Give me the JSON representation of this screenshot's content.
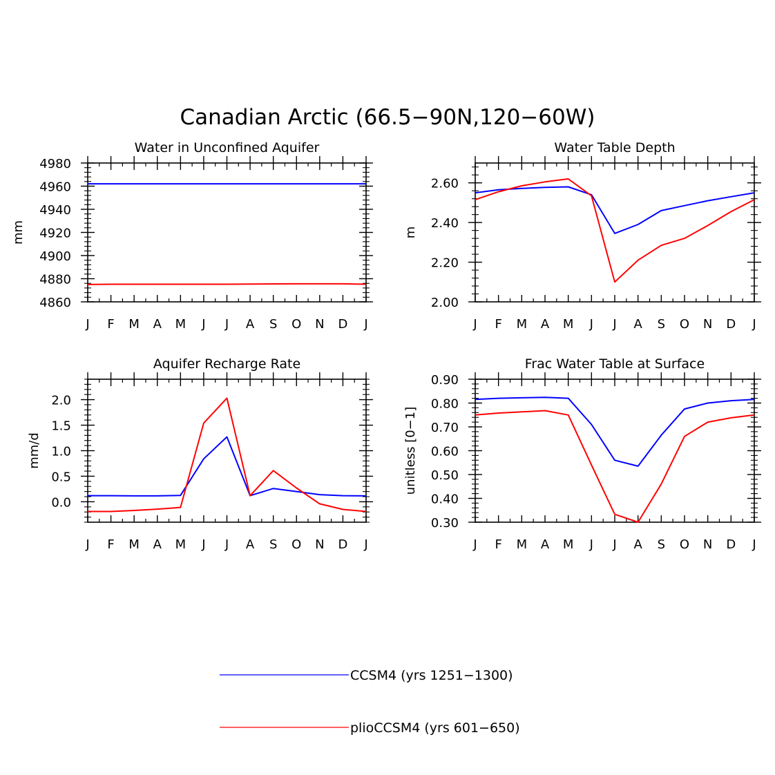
{
  "figure": {
    "title": "Canadian Arctic (66.5−90N,120−60W)"
  },
  "legend": {
    "placement": "bottom-center",
    "items": [
      {
        "label": "CCSM4 (yrs 1251−1300)",
        "color": "#0000ff"
      },
      {
        "label": "plioCCSM4 (yrs 601−650)",
        "color": "#ff0000"
      }
    ]
  },
  "chart_data": [
    {
      "type": "line",
      "title": "Water in Unconfined Aquifer",
      "ylabel": "mm",
      "xlabel": "",
      "x_ticks": [
        "J",
        "F",
        "M",
        "A",
        "M",
        "J",
        "J",
        "A",
        "S",
        "O",
        "N",
        "D",
        "J"
      ],
      "ylim": [
        4860,
        4980
      ],
      "y_ticks": [
        4860,
        4880,
        4900,
        4920,
        4940,
        4960,
        4980
      ],
      "y_tick_labels": [
        "4860",
        "4880",
        "4900",
        "4920",
        "4940",
        "4960",
        "4980"
      ],
      "grid": false,
      "series": [
        {
          "name": "CCSM4 (yrs 1251−1300)",
          "color": "#0000ff",
          "values": [
            4962,
            4962,
            4962,
            4962,
            4962,
            4962,
            4962,
            4962,
            4962,
            4962,
            4962,
            4962,
            4962
          ]
        },
        {
          "name": "plioCCSM4 (yrs 601−650)",
          "color": "#ff0000",
          "values": [
            4875,
            4875.2,
            4875.2,
            4875.2,
            4875.2,
            4875.2,
            4875.2,
            4875.4,
            4875.5,
            4875.6,
            4875.6,
            4875.6,
            4875.2
          ]
        }
      ]
    },
    {
      "type": "line",
      "title": "Water Table Depth",
      "ylabel": "m",
      "xlabel": "",
      "x_ticks": [
        "J",
        "F",
        "M",
        "A",
        "M",
        "J",
        "J",
        "A",
        "S",
        "O",
        "N",
        "D",
        "J"
      ],
      "ylim": [
        2.0,
        2.7
      ],
      "y_ticks": [
        2.0,
        2.2,
        2.4,
        2.6
      ],
      "y_tick_labels": [
        "2.00",
        "2.20",
        "2.40",
        "2.60"
      ],
      "grid": false,
      "series": [
        {
          "name": "CCSM4 (yrs 1251−1300)",
          "color": "#0000ff",
          "values": [
            2.55,
            2.565,
            2.572,
            2.577,
            2.58,
            2.54,
            2.345,
            2.39,
            2.46,
            2.485,
            2.51,
            2.53,
            2.55
          ]
        },
        {
          "name": "plioCCSM4 (yrs 601−650)",
          "color": "#ff0000",
          "values": [
            2.515,
            2.555,
            2.585,
            2.605,
            2.62,
            2.535,
            2.1,
            2.21,
            2.285,
            2.32,
            2.385,
            2.455,
            2.515
          ]
        }
      ]
    },
    {
      "type": "line",
      "title": "Aquifer Recharge Rate",
      "ylabel": "mm/d",
      "xlabel": "",
      "x_ticks": [
        "J",
        "F",
        "M",
        "A",
        "M",
        "J",
        "J",
        "A",
        "S",
        "O",
        "N",
        "D",
        "J"
      ],
      "ylim": [
        -0.4,
        2.4
      ],
      "y_ticks": [
        0.0,
        0.5,
        1.0,
        1.5,
        2.0
      ],
      "y_tick_labels": [
        "0.0",
        "0.5",
        "1.0",
        "1.5",
        "2.0"
      ],
      "grid": false,
      "series": [
        {
          "name": "CCSM4 (yrs 1251−1300)",
          "color": "#0000ff",
          "values": [
            0.12,
            0.12,
            0.115,
            0.115,
            0.125,
            0.84,
            1.27,
            0.12,
            0.26,
            0.2,
            0.14,
            0.12,
            0.115
          ]
        },
        {
          "name": "plioCCSM4 (yrs 601−650)",
          "color": "#ff0000",
          "values": [
            -0.19,
            -0.19,
            -0.17,
            -0.145,
            -0.11,
            1.54,
            2.03,
            0.12,
            0.61,
            0.27,
            -0.04,
            -0.15,
            -0.19
          ]
        }
      ]
    },
    {
      "type": "line",
      "title": "Frac Water Table at Surface",
      "ylabel": "unitless [0−1]",
      "xlabel": "",
      "x_ticks": [
        "J",
        "F",
        "M",
        "A",
        "M",
        "J",
        "J",
        "A",
        "S",
        "O",
        "N",
        "D",
        "J"
      ],
      "ylim": [
        0.3,
        0.9
      ],
      "y_ticks": [
        0.3,
        0.4,
        0.5,
        0.6,
        0.7,
        0.8,
        0.9
      ],
      "y_tick_labels": [
        "0.30",
        "0.40",
        "0.50",
        "0.60",
        "0.70",
        "0.80",
        "0.90"
      ],
      "grid": false,
      "series": [
        {
          "name": "CCSM4 (yrs 1251−1300)",
          "color": "#0000ff",
          "values": [
            0.815,
            0.82,
            0.822,
            0.824,
            0.82,
            0.71,
            0.56,
            0.535,
            0.665,
            0.775,
            0.8,
            0.81,
            0.815
          ]
        },
        {
          "name": "plioCCSM4 (yrs 601−650)",
          "color": "#ff0000",
          "values": [
            0.75,
            0.758,
            0.763,
            0.768,
            0.75,
            0.54,
            0.333,
            0.3,
            0.46,
            0.66,
            0.72,
            0.738,
            0.75
          ]
        }
      ]
    }
  ]
}
